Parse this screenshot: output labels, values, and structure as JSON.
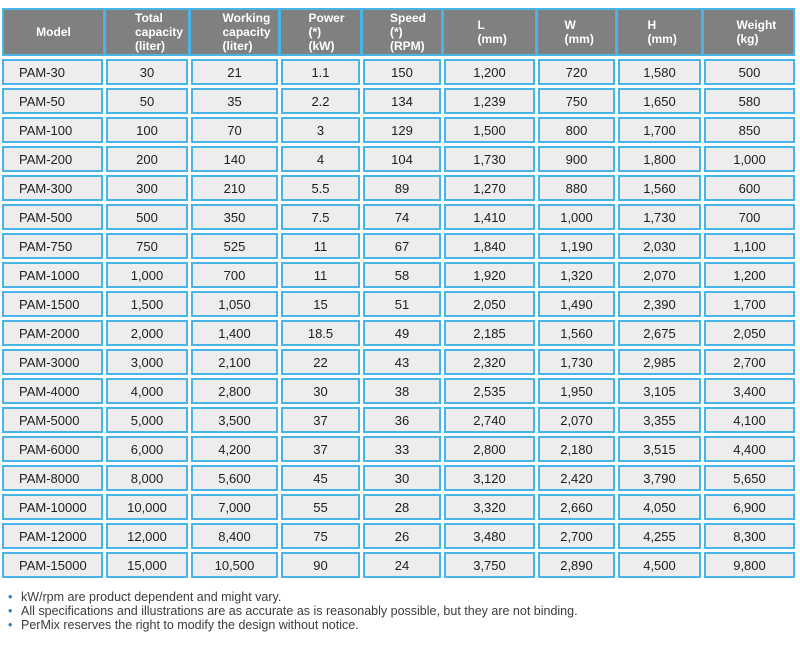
{
  "colors": {
    "accent_border_blue": "#47b5e8",
    "header_gray": "#808080",
    "cell_gray": "#ededed",
    "header_text": "#ffffff",
    "body_text": "#1e1e1e",
    "bullet_blue": "#2f7bbf"
  },
  "table": {
    "headers": [
      {
        "id": "model",
        "label": "Model"
      },
      {
        "id": "total-capacity",
        "label": "Total\ncapacity\n(liter)"
      },
      {
        "id": "working-capacity",
        "label": "Working\ncapacity\n(liter)"
      },
      {
        "id": "power",
        "label": "Power (*)\n(kW)"
      },
      {
        "id": "speed",
        "label": "Speed (*)\n(RPM)"
      },
      {
        "id": "length",
        "label": "L\n(mm)"
      },
      {
        "id": "width",
        "label": "W\n(mm)"
      },
      {
        "id": "height",
        "label": "H\n(mm)"
      },
      {
        "id": "weight",
        "label": "Weight\n(kg)"
      }
    ],
    "rows": [
      [
        "PAM-30",
        "30",
        "21",
        "1.1",
        "150",
        "1,200",
        "720",
        "1,580",
        "500"
      ],
      [
        "PAM-50",
        "50",
        "35",
        "2.2",
        "134",
        "1,239",
        "750",
        "1,650",
        "580"
      ],
      [
        "PAM-100",
        "100",
        "70",
        "3",
        "129",
        "1,500",
        "800",
        "1,700",
        "850"
      ],
      [
        "PAM-200",
        "200",
        "140",
        "4",
        "104",
        "1,730",
        "900",
        "1,800",
        "1,000"
      ],
      [
        "PAM-300",
        "300",
        "210",
        "5.5",
        "89",
        "1,270",
        "880",
        "1,560",
        "600"
      ],
      [
        "PAM-500",
        "500",
        "350",
        "7.5",
        "74",
        "1,410",
        "1,000",
        "1,730",
        "700"
      ],
      [
        "PAM-750",
        "750",
        "525",
        "11",
        "67",
        "1,840",
        "1,190",
        "2,030",
        "1,100"
      ],
      [
        "PAM-1000",
        "1,000",
        "700",
        "11",
        "58",
        "1,920",
        "1,320",
        "2,070",
        "1,200"
      ],
      [
        "PAM-1500",
        "1,500",
        "1,050",
        "15",
        "51",
        "2,050",
        "1,490",
        "2,390",
        "1,700"
      ],
      [
        "PAM-2000",
        "2,000",
        "1,400",
        "18.5",
        "49",
        "2,185",
        "1,560",
        "2,675",
        "2,050"
      ],
      [
        "PAM-3000",
        "3,000",
        "2,100",
        "22",
        "43",
        "2,320",
        "1,730",
        "2,985",
        "2,700"
      ],
      [
        "PAM-4000",
        "4,000",
        "2,800",
        "30",
        "38",
        "2,535",
        "1,950",
        "3,105",
        "3,400"
      ],
      [
        "PAM-5000",
        "5,000",
        "3,500",
        "37",
        "36",
        "2,740",
        "2,070",
        "3,355",
        "4,100"
      ],
      [
        "PAM-6000",
        "6,000",
        "4,200",
        "37",
        "33",
        "2,800",
        "2,180",
        "3,515",
        "4,400"
      ],
      [
        "PAM-8000",
        "8,000",
        "5,600",
        "45",
        "30",
        "3,120",
        "2,420",
        "3,790",
        "5,650"
      ],
      [
        "PAM-10000",
        "10,000",
        "7,000",
        "55",
        "28",
        "3,320",
        "2,660",
        "4,050",
        "6,900"
      ],
      [
        "PAM-12000",
        "12,000",
        "8,400",
        "75",
        "26",
        "3,480",
        "2,700",
        "4,255",
        "8,300"
      ],
      [
        "PAM-15000",
        "15,000",
        "10,500",
        "90",
        "24",
        "3,750",
        "2,890",
        "4,500",
        "9,800"
      ]
    ]
  },
  "notes": [
    "kW/rpm are product dependent and might vary.",
    "All specifications and illustrations are as accurate as is reasonably possible, but they are not binding.",
    "PerMix reserves the right to modify the design without notice."
  ]
}
